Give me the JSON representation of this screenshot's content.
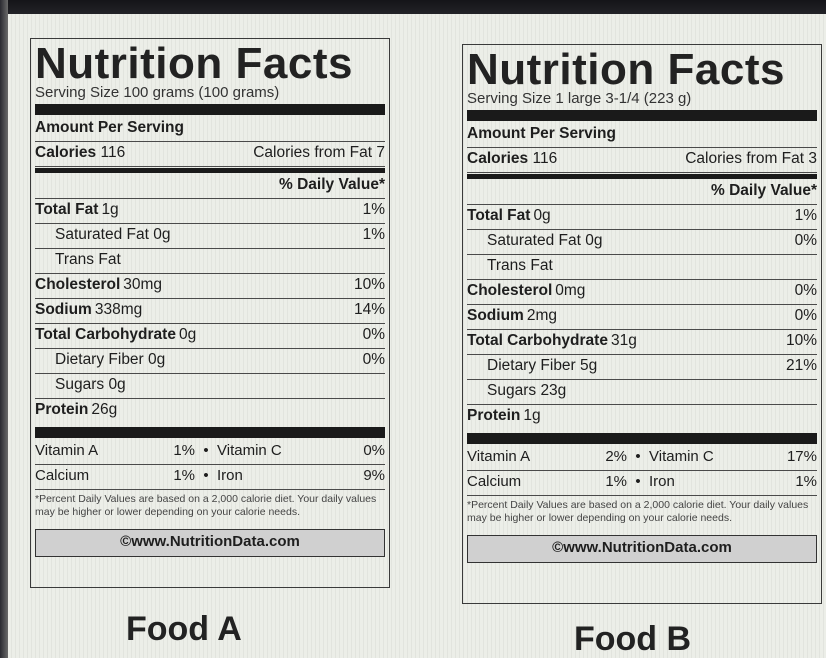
{
  "labels": [
    {
      "title": "Nutrition Facts",
      "serving": "Serving Size 100 grams (100 grams)",
      "amount_per_serving": "Amount Per Serving",
      "calories_label": "Calories",
      "calories_value": "116",
      "calories_fat": "Calories from Fat 7",
      "daily_value_header": "% Daily Value*",
      "rows": [
        {
          "label": "Total Fat",
          "amount": "1g",
          "dv": "1%"
        },
        {
          "label": "Saturated Fat",
          "amount": "0g",
          "dv": "1%"
        },
        {
          "label": "Trans Fat",
          "amount": "",
          "dv": ""
        },
        {
          "label": "Cholesterol",
          "amount": "30mg",
          "dv": "10%"
        },
        {
          "label": "Sodium",
          "amount": "338mg",
          "dv": "14%"
        },
        {
          "label": "Total Carbohydrate",
          "amount": "0g",
          "dv": "0%"
        },
        {
          "label": "Dietary Fiber",
          "amount": "0g",
          "dv": "0%"
        },
        {
          "label": "Sugars",
          "amount": "0g",
          "dv": ""
        },
        {
          "label": "Protein",
          "amount": "26g",
          "dv": ""
        }
      ],
      "vitamins": {
        "vitamin_a": "Vitamin A",
        "vitamin_a_dv": "1%",
        "vitamin_c": "Vitamin C",
        "vitamin_c_dv": "0%",
        "calcium": "Calcium",
        "calcium_dv": "1%",
        "iron": "Iron",
        "iron_dv": "9%",
        "bullet": "•"
      },
      "footnote": "*Percent Daily Values are based on a 2,000 calorie diet. Your daily values may be higher or lower depending on your calorie needs.",
      "source": "©www.NutritionData.com"
    },
    {
      "title": "Nutrition Facts",
      "serving": "Serving Size 1 large 3-1/4 (223 g)",
      "amount_per_serving": "Amount Per Serving",
      "calories_label": "Calories",
      "calories_value": "116",
      "calories_fat": "Calories from Fat 3",
      "daily_value_header": "% Daily Value*",
      "rows": [
        {
          "label": "Total Fat",
          "amount": "0g",
          "dv": "1%"
        },
        {
          "label": "Saturated Fat",
          "amount": "0g",
          "dv": "0%"
        },
        {
          "label": "Trans Fat",
          "amount": "",
          "dv": ""
        },
        {
          "label": "Cholesterol",
          "amount": "0mg",
          "dv": "0%"
        },
        {
          "label": "Sodium",
          "amount": "2mg",
          "dv": "0%"
        },
        {
          "label": "Total Carbohydrate",
          "amount": "31g",
          "dv": "10%"
        },
        {
          "label": "Dietary Fiber",
          "amount": "5g",
          "dv": "21%"
        },
        {
          "label": "Sugars",
          "amount": "23g",
          "dv": ""
        },
        {
          "label": "Protein",
          "amount": "1g",
          "dv": ""
        }
      ],
      "vitamins": {
        "vitamin_a": "Vitamin A",
        "vitamin_a_dv": "2%",
        "vitamin_c": "Vitamin C",
        "vitamin_c_dv": "17%",
        "calcium": "Calcium",
        "calcium_dv": "1%",
        "iron": "Iron",
        "iron_dv": "1%",
        "bullet": "•"
      },
      "footnote": "*Percent Daily Values are based on a 2,000 calorie diet. Your daily values may be higher or lower depending on your calorie needs.",
      "source": "©www.NutritionData.com"
    }
  ],
  "captions": [
    "Food A",
    "Food B"
  ]
}
